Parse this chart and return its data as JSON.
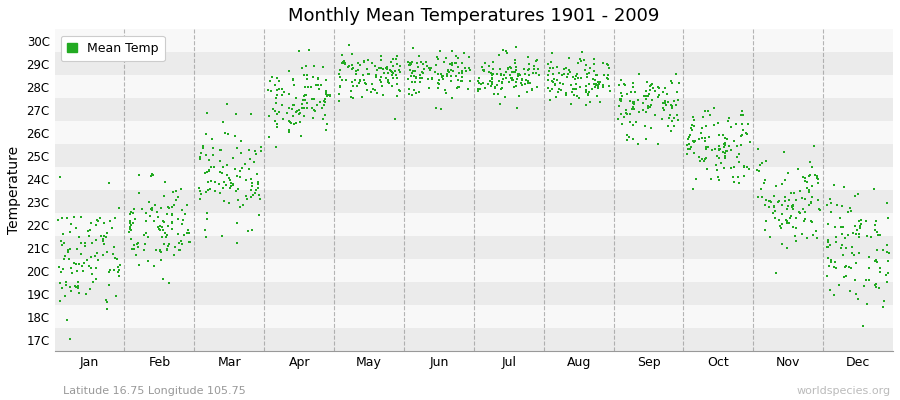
{
  "title": "Monthly Mean Temperatures 1901 - 2009",
  "ylabel": "Temperature",
  "subtitle": "Latitude 16.75 Longitude 105.75",
  "watermark": "worldspecies.org",
  "legend_label": "Mean Temp",
  "dot_color": "#22aa22",
  "background_color": "#ffffff",
  "stripe_colors": [
    "#ebebeb",
    "#f8f8f8"
  ],
  "ytick_labels": [
    "17C",
    "18C",
    "19C",
    "20C",
    "21C",
    "22C",
    "23C",
    "24C",
    "25C",
    "26C",
    "27C",
    "28C",
    "29C",
    "30C"
  ],
  "ytick_values": [
    17,
    18,
    19,
    20,
    21,
    22,
    23,
    24,
    25,
    26,
    27,
    28,
    29,
    30
  ],
  "months": [
    "Jan",
    "Feb",
    "Mar",
    "Apr",
    "May",
    "Jun",
    "Jul",
    "Aug",
    "Sep",
    "Oct",
    "Nov",
    "Dec"
  ],
  "mean_temps": [
    20.5,
    21.8,
    24.2,
    27.5,
    28.5,
    28.5,
    28.5,
    28.2,
    27.2,
    25.5,
    23.0,
    21.0
  ],
  "std_temps": [
    1.3,
    1.1,
    1.1,
    0.8,
    0.55,
    0.5,
    0.5,
    0.5,
    0.75,
    0.9,
    1.1,
    1.3
  ],
  "n_years": 109,
  "seed": 42,
  "figsize": [
    9.0,
    4.0
  ],
  "dpi": 100
}
